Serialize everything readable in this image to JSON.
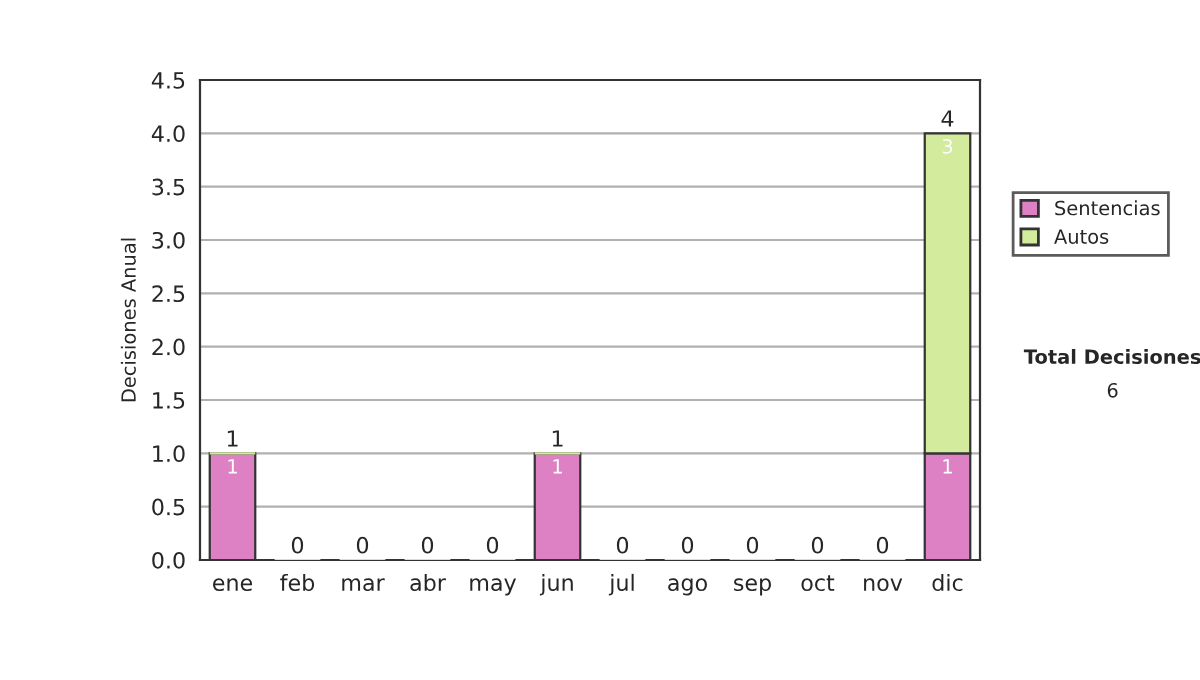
{
  "chart_data": {
    "type": "bar",
    "stacked": true,
    "ylabel": "Decisiones Anual",
    "categories": [
      "ene",
      "feb",
      "mar",
      "abr",
      "may",
      "jun",
      "jul",
      "ago",
      "sep",
      "oct",
      "nov",
      "dic"
    ],
    "series": [
      {
        "name": "Sentencias",
        "color": "#dd80c4",
        "values": [
          1,
          0,
          0,
          0,
          0,
          1,
          0,
          0,
          0,
          0,
          0,
          1
        ],
        "value_labels": [
          "1",
          null,
          null,
          null,
          null,
          "1",
          null,
          null,
          null,
          null,
          null,
          "1"
        ]
      },
      {
        "name": "Autos",
        "color": "#d2eb9c",
        "values": [
          0,
          0,
          0,
          0,
          0,
          0,
          0,
          0,
          0,
          0,
          0,
          3
        ],
        "value_labels": [
          null,
          null,
          null,
          null,
          null,
          null,
          null,
          null,
          null,
          null,
          null,
          "3"
        ]
      }
    ],
    "totals": [
      "1",
      "0",
      "0",
      "0",
      "0",
      "1",
      "0",
      "0",
      "0",
      "0",
      "0",
      "4"
    ],
    "ylim": [
      0,
      4.5
    ],
    "yticks": [
      {
        "value": 0,
        "label": "0.0"
      },
      {
        "value": 0.5,
        "label": "0.5"
      },
      {
        "value": 1,
        "label": "1.0"
      },
      {
        "value": 1.5,
        "label": "1.5"
      },
      {
        "value": 2,
        "label": "2.0"
      },
      {
        "value": 2.5,
        "label": "2.5"
      },
      {
        "value": 3,
        "label": "3.0"
      },
      {
        "value": 3.5,
        "label": "3.5"
      },
      {
        "value": 4,
        "label": "4.0"
      },
      {
        "value": 4.5,
        "label": "4.5"
      }
    ],
    "grid": "y",
    "legend": "right",
    "annotations": [
      "Total Decisiones",
      "6"
    ]
  }
}
